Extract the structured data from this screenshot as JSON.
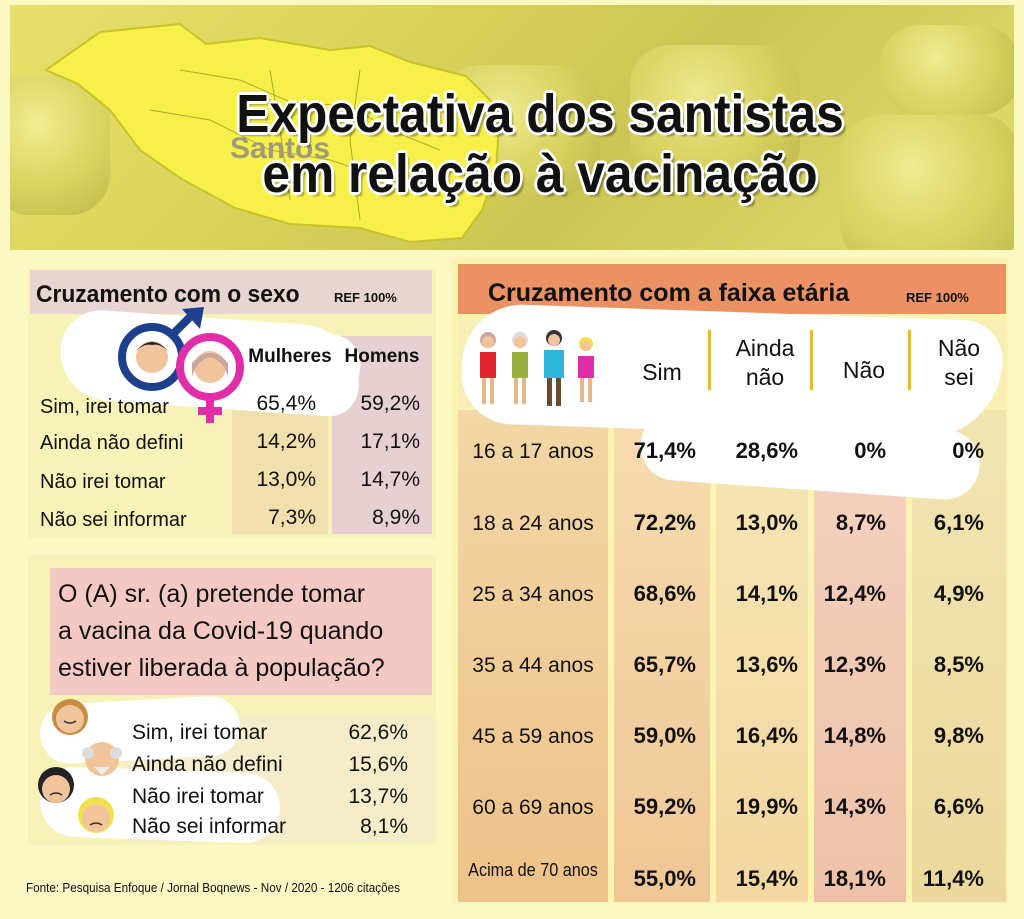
{
  "header": {
    "title_line1": "Expectativa dos santistas",
    "title_line2": "em relação à vacinação",
    "map_label": "Santos"
  },
  "sex_table": {
    "title": "Cruzamento com o sexo",
    "ref": "REF 100%",
    "columns": [
      "Mulheres",
      "Homens"
    ],
    "rows": [
      {
        "label": "Sim, irei tomar",
        "women": "65,4%",
        "men": "59,2%"
      },
      {
        "label": "Ainda não defini",
        "women": "14,2%",
        "men": "17,1%"
      },
      {
        "label": "Não irei tomar",
        "women": "13,0%",
        "men": "14,7%"
      },
      {
        "label": "Não sei informar",
        "women": "7,3%",
        "men": "8,9%"
      }
    ]
  },
  "question": {
    "line1": "O (A) sr. (a) pretende tomar",
    "line2": "a vacina da Covid-19 quando",
    "line3": "estiver liberada à população?",
    "rows": [
      {
        "label": "Sim, irei tomar",
        "value": "62,6%"
      },
      {
        "label": "Ainda não defini",
        "value": "15,6%"
      },
      {
        "label": "Não irei tomar",
        "value": "13,7%"
      },
      {
        "label": "Não sei informar",
        "value": "8,1%"
      }
    ]
  },
  "age_table": {
    "title": "Cruzamento com a faixa etária",
    "ref": "REF 100%",
    "col_sim": "Sim",
    "col_ainda_1": "Ainda",
    "col_ainda_2": "não",
    "col_nao": "Não",
    "col_naosei_1": "Não",
    "col_naosei_2": "sei",
    "rows": [
      {
        "label": "16 a 17 anos",
        "sim": "71,4%",
        "ainda": "28,6%",
        "nao": "0%",
        "naosei": "0%"
      },
      {
        "label": "18 a 24 anos",
        "sim": "72,2%",
        "ainda": "13,0%",
        "nao": "8,7%",
        "naosei": "6,1%"
      },
      {
        "label": "25 a 34 anos",
        "sim": "68,6%",
        "ainda": "14,1%",
        "nao": "12,4%",
        "naosei": "4,9%"
      },
      {
        "label": "35 a 44 anos",
        "sim": "65,7%",
        "ainda": "13,6%",
        "nao": "12,3%",
        "naosei": "8,5%"
      },
      {
        "label": "45 a 59 anos",
        "sim": "59,0%",
        "ainda": "16,4%",
        "nao": "14,8%",
        "naosei": "9,8%"
      },
      {
        "label": "60 a 69 anos",
        "sim": "59,2%",
        "ainda": "19,9%",
        "nao": "14,3%",
        "naosei": "6,6%"
      },
      {
        "label": "Acima de 70 anos",
        "sim": "55,0%",
        "ainda": "15,4%",
        "nao": "18,1%",
        "naosei": "11,4%"
      }
    ]
  },
  "source": "Fonte: Pesquisa Enfoque / Jornal Boqnews - Nov / 2020 - 1206 citações",
  "chart_data": [
    {
      "type": "table",
      "title": "Cruzamento com o sexo",
      "categories": [
        "Sim, irei tomar",
        "Ainda não defini",
        "Não irei tomar",
        "Não sei informar"
      ],
      "series": [
        {
          "name": "Mulheres",
          "values": [
            65.4,
            14.2,
            13.0,
            7.3
          ]
        },
        {
          "name": "Homens",
          "values": [
            59.2,
            17.1,
            14.7,
            8.9
          ]
        }
      ]
    },
    {
      "type": "table",
      "title": "O (A) sr. (a) pretende tomar a vacina da Covid-19 quando estiver liberada à população?",
      "categories": [
        "Sim, irei tomar",
        "Ainda não defini",
        "Não irei tomar",
        "Não sei informar"
      ],
      "values": [
        62.6,
        15.6,
        13.7,
        8.1
      ]
    },
    {
      "type": "table",
      "title": "Cruzamento com a faixa etária",
      "categories": [
        "16 a 17 anos",
        "18 a 24 anos",
        "25 a 34 anos",
        "35 a 44 anos",
        "45 a 59 anos",
        "60 a 69 anos",
        "Acima de 70 anos"
      ],
      "series": [
        {
          "name": "Sim",
          "values": [
            71.4,
            72.2,
            68.6,
            65.7,
            59.0,
            59.2,
            55.0
          ]
        },
        {
          "name": "Ainda não",
          "values": [
            28.6,
            13.0,
            14.1,
            13.6,
            16.4,
            19.9,
            15.4
          ]
        },
        {
          "name": "Não",
          "values": [
            0,
            8.7,
            12.4,
            12.3,
            14.8,
            14.3,
            18.1
          ]
        },
        {
          "name": "Não sei",
          "values": [
            0,
            6.1,
            4.9,
            8.5,
            9.8,
            6.6,
            11.4
          ]
        }
      ]
    }
  ]
}
